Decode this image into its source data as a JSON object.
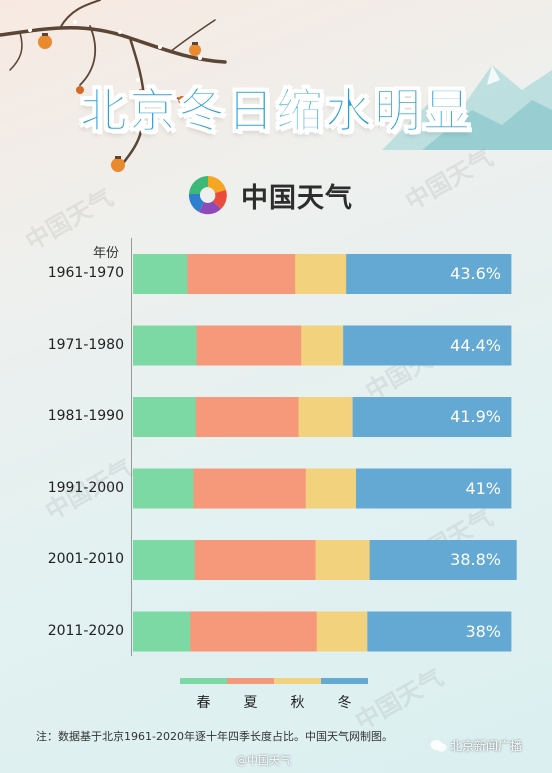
{
  "title": "北京冬日缩水明显",
  "brand": {
    "name": "中国天气"
  },
  "watermark": "中国天气",
  "axis_header": "年份",
  "legend": [
    {
      "label": "春",
      "color": "#7dd9a4"
    },
    {
      "label": "夏",
      "color": "#f6987a"
    },
    {
      "label": "秋",
      "color": "#f2d27d"
    },
    {
      "label": "冬",
      "color": "#63a9d3"
    }
  ],
  "chart_data": {
    "type": "bar",
    "stacked": "horizontal-percent",
    "categories": [
      "1961-1970",
      "1971-1980",
      "1981-1990",
      "1991-2000",
      "2001-2010",
      "2011-2020"
    ],
    "series": [
      {
        "name": "春",
        "values": [
          14.4,
          16.8,
          16.6,
          16.0,
          16.3,
          15.1
        ]
      },
      {
        "name": "夏",
        "values": [
          28.5,
          27.7,
          27.2,
          29.7,
          32.0,
          33.5
        ]
      },
      {
        "name": "秋",
        "values": [
          13.5,
          11.1,
          14.3,
          13.3,
          14.3,
          13.4
        ]
      },
      {
        "name": "冬",
        "values": [
          43.6,
          44.4,
          41.9,
          41.0,
          38.8,
          38.0
        ]
      }
    ],
    "data_labels": [
      "43.6%",
      "44.4%",
      "41.9%",
      "41%",
      "38.8%",
      "38%"
    ],
    "xlim": [
      0,
      100
    ]
  },
  "footnote": "注：数据基于北京1961-2020年逐十年四季长度占比。中国天气网制图。",
  "weibo_credit": "@中国天气",
  "wechat_credit": "北京新闻广播"
}
